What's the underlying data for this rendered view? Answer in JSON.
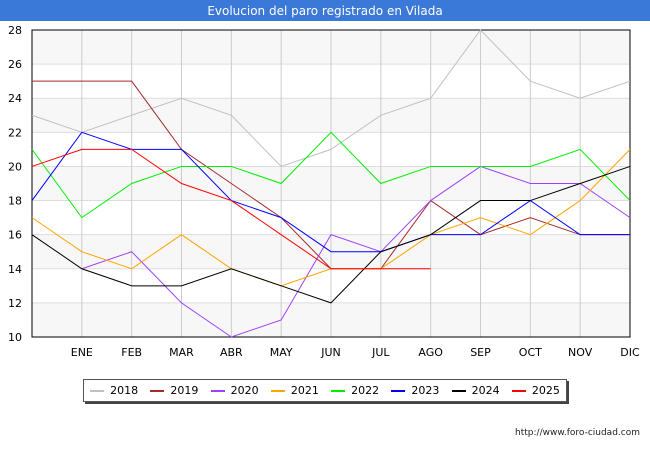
{
  "title": "Evolucion del paro registrado en Vilada",
  "footer": "http://www.foro-ciudad.com",
  "chart_data": {
    "type": "line",
    "title": "Evolucion del paro registrado en Vilada",
    "x": [
      "",
      "ENE",
      "FEB",
      "MAR",
      "ABR",
      "MAY",
      "JUN",
      "JUL",
      "AGO",
      "SEP",
      "OCT",
      "NOV",
      "DIC"
    ],
    "ylim": [
      10,
      28
    ],
    "yticks": [
      10,
      12,
      14,
      16,
      18,
      20,
      22,
      24,
      26,
      28
    ],
    "grid": true,
    "legend_position": "bottom",
    "series": [
      {
        "name": "2018",
        "color": "#c0c0c0",
        "values": [
          23,
          22,
          23,
          24,
          23,
          20,
          21,
          23,
          24,
          28,
          25,
          24,
          25
        ]
      },
      {
        "name": "2019",
        "color": "#a52a2a",
        "values": [
          25,
          25,
          25,
          21,
          19,
          17,
          14,
          14,
          18,
          16,
          17,
          16,
          16
        ]
      },
      {
        "name": "2020",
        "color": "#a040ff",
        "values": [
          null,
          14,
          15,
          12,
          10,
          11,
          16,
          15,
          18,
          20,
          19,
          19,
          17
        ]
      },
      {
        "name": "2021",
        "color": "#ffa500",
        "values": [
          17,
          15,
          14,
          16,
          14,
          13,
          14,
          14,
          16,
          17,
          16,
          18,
          21
        ]
      },
      {
        "name": "2022",
        "color": "#00ee00",
        "values": [
          21,
          17,
          19,
          20,
          20,
          19,
          22,
          19,
          20,
          20,
          20,
          21,
          18
        ]
      },
      {
        "name": "2023",
        "color": "#0000ff",
        "values": [
          18,
          22,
          21,
          21,
          18,
          17,
          15,
          15,
          16,
          16,
          18,
          16,
          16
        ]
      },
      {
        "name": "2024",
        "color": "#000000",
        "values": [
          16,
          14,
          13,
          13,
          14,
          13,
          12,
          15,
          16,
          18,
          18,
          19,
          20
        ]
      },
      {
        "name": "2025",
        "color": "#ff0000",
        "values": [
          20,
          21,
          21,
          19,
          18,
          16,
          14,
          14,
          14,
          null,
          null,
          null,
          null
        ]
      }
    ]
  }
}
